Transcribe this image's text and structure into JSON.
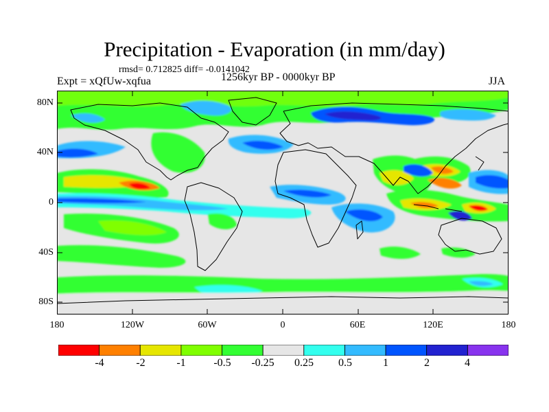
{
  "title": "Precipitation - Evaporation (in mm/day)",
  "stats": "rmsd= 0.712825  diff= -0.0141042",
  "experiment": "Expt = xQfUw-xqfua",
  "period": "1256kyr BP - 0000kyr BP",
  "season": "JJA",
  "y_axis_labels": [
    "80N",
    "40N",
    "0",
    "40S",
    "80S"
  ],
  "x_axis_labels": [
    "180",
    "120W",
    "60W",
    "0",
    "60E",
    "120E",
    "180"
  ],
  "colorbar": {
    "labels": [
      "-4",
      "-2",
      "-1",
      "-0.5",
      "-0.25",
      "0.25",
      "0.5",
      "1",
      "2",
      "4"
    ],
    "colors": [
      "#ff0000",
      "#ff8000",
      "#e6e600",
      "#80ff00",
      "#33ff33",
      "#e6e6e6",
      "#33ffee",
      "#33bbff",
      "#0055ff",
      "#2222d0",
      "#8833ee"
    ]
  }
}
